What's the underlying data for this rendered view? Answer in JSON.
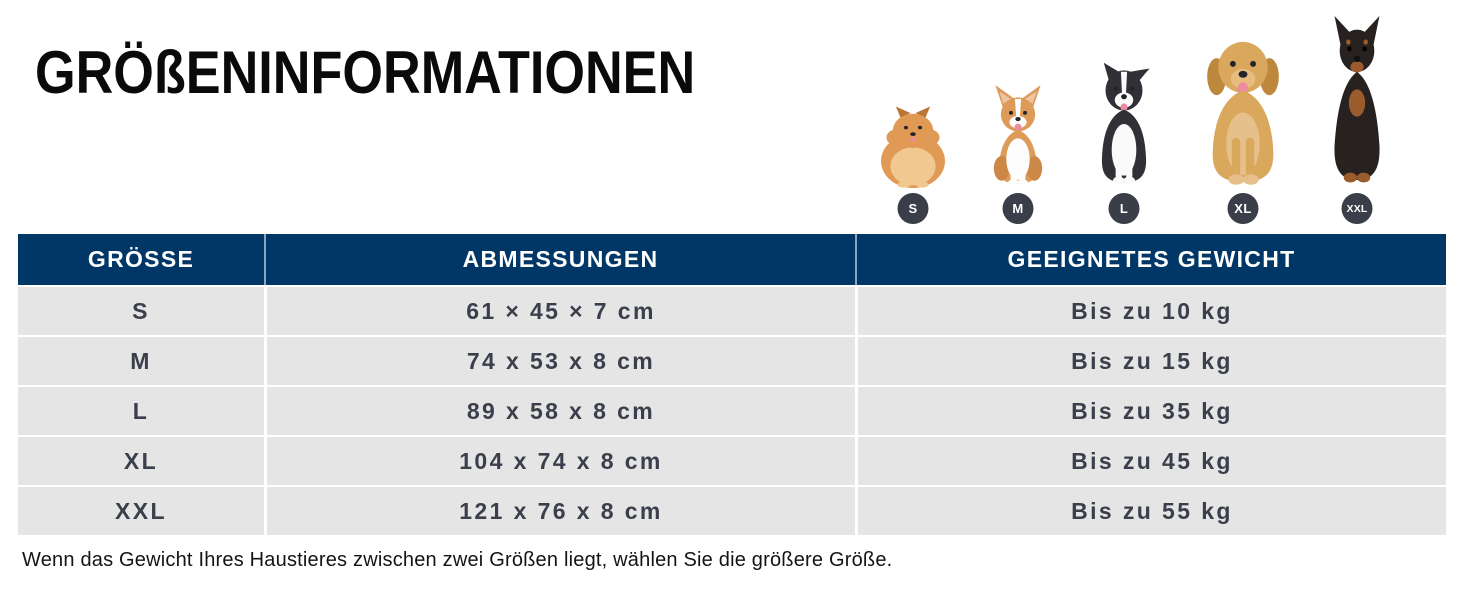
{
  "page": {
    "title": "GRÖßENINFORMATIONEN",
    "footnote": "Wenn das Gewicht Ihres Haustieres zwischen zwei Größen liegt, wählen Sie die größere Größe."
  },
  "size_guide": {
    "dogs": [
      {
        "label": "S",
        "breed": "pomeranian",
        "colors": {
          "coat": "#e09a55",
          "shade": "#b97737",
          "light": "#f0c890",
          "inner": "#e8b98c"
        }
      },
      {
        "label": "M",
        "breed": "corgi",
        "colors": {
          "coat": "#dd9a58",
          "shade": "#cd8746",
          "light": "#fdfdfd",
          "inner": "#eec3a0"
        }
      },
      {
        "label": "L",
        "breed": "border-collie",
        "colors": {
          "coat": "#303036",
          "shade": "#232327",
          "light": "#fafafa",
          "inner": "#4a4a52"
        }
      },
      {
        "label": "XL",
        "breed": "golden-retriever",
        "colors": {
          "coat": "#d9a85c",
          "shade": "#bd883c",
          "light": "#e9c astounding"
        }
      },
      {
        "label": "XXL",
        "breed": "doberman",
        "colors": {
          "coat": "#272220",
          "shade": "#17100d",
          "light": "#9a5b2d",
          "inner": "#9a5b2d"
        }
      }
    ],
    "table": {
      "headers": [
        "GRÖSSE",
        "ABMESSUNGEN",
        "GEEIGNETES GEWICHT"
      ],
      "rows": [
        {
          "size": "S",
          "dimensions": "61 × 45 × 7 cm",
          "weight": "Bis zu 10 kg"
        },
        {
          "size": "M",
          "dimensions": "74 x 53 x 8 cm",
          "weight": "Bis zu 15 kg"
        },
        {
          "size": "L",
          "dimensions": "89 x 58 x 8 cm",
          "weight": "Bis zu 35 kg"
        },
        {
          "size": "XL",
          "dimensions": "104 x 74 x 8 cm",
          "weight": "Bis zu 45 kg"
        },
        {
          "size": "XXL",
          "dimensions": "121 x 76 x 8 cm",
          "weight": "Bis zu 55 kg"
        }
      ]
    },
    "colors": {
      "header_bg": "#003767",
      "row_bg": "#e5e5e5",
      "cell_text": "#3a3f4b",
      "badge_bg": "#3a3e48"
    }
  }
}
